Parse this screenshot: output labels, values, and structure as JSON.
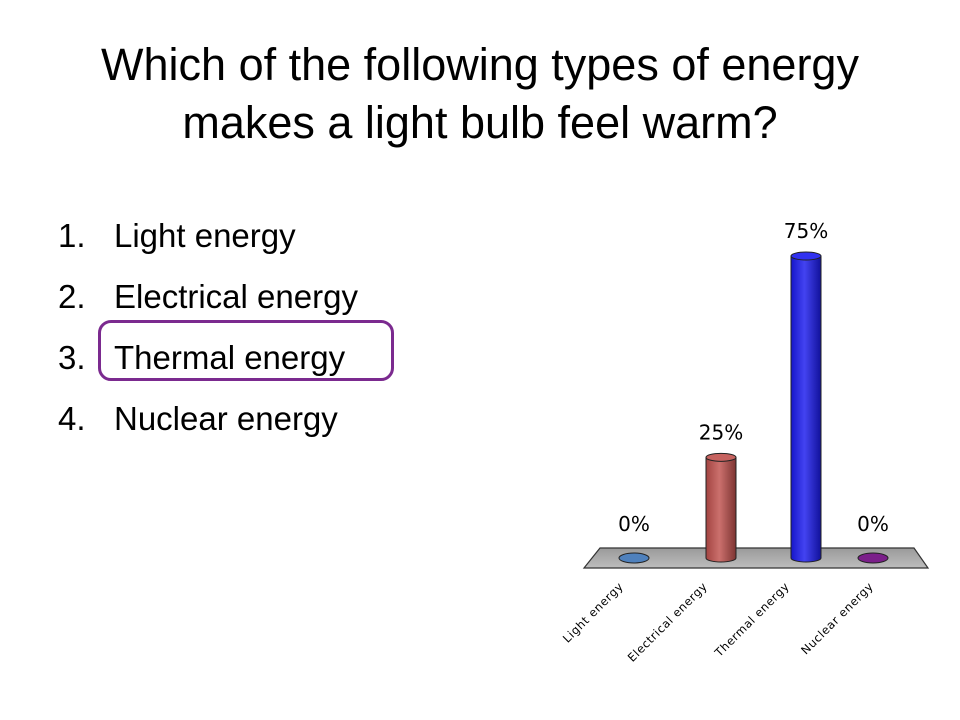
{
  "slide": {
    "title_line1": "Which of the following types of energy",
    "title_line2": "makes a light bulb feel warm?",
    "options": [
      {
        "number": "1.",
        "text": "Light energy"
      },
      {
        "number": "2.",
        "text": "Electrical energy"
      },
      {
        "number": "3.",
        "text": "Thermal energy"
      },
      {
        "number": "4.",
        "text": "Nuclear energy"
      }
    ],
    "correct_option": 3,
    "marker_color": "#7b2a8f"
  },
  "chart_data": {
    "type": "bar",
    "style": "3d-cylinder",
    "categories": [
      "Light energy",
      "Electrical energy",
      "Thermal energy",
      "Nuclear energy"
    ],
    "values": [
      0,
      25,
      75,
      0
    ],
    "value_labels": [
      "0%",
      "25%",
      "75%",
      "0%"
    ],
    "colors": [
      "#4f81bd",
      "#c0504d",
      "#1a1aee",
      "#7b1f8a"
    ],
    "ylim": [
      0,
      100
    ],
    "grid": false,
    "legend": "none"
  }
}
